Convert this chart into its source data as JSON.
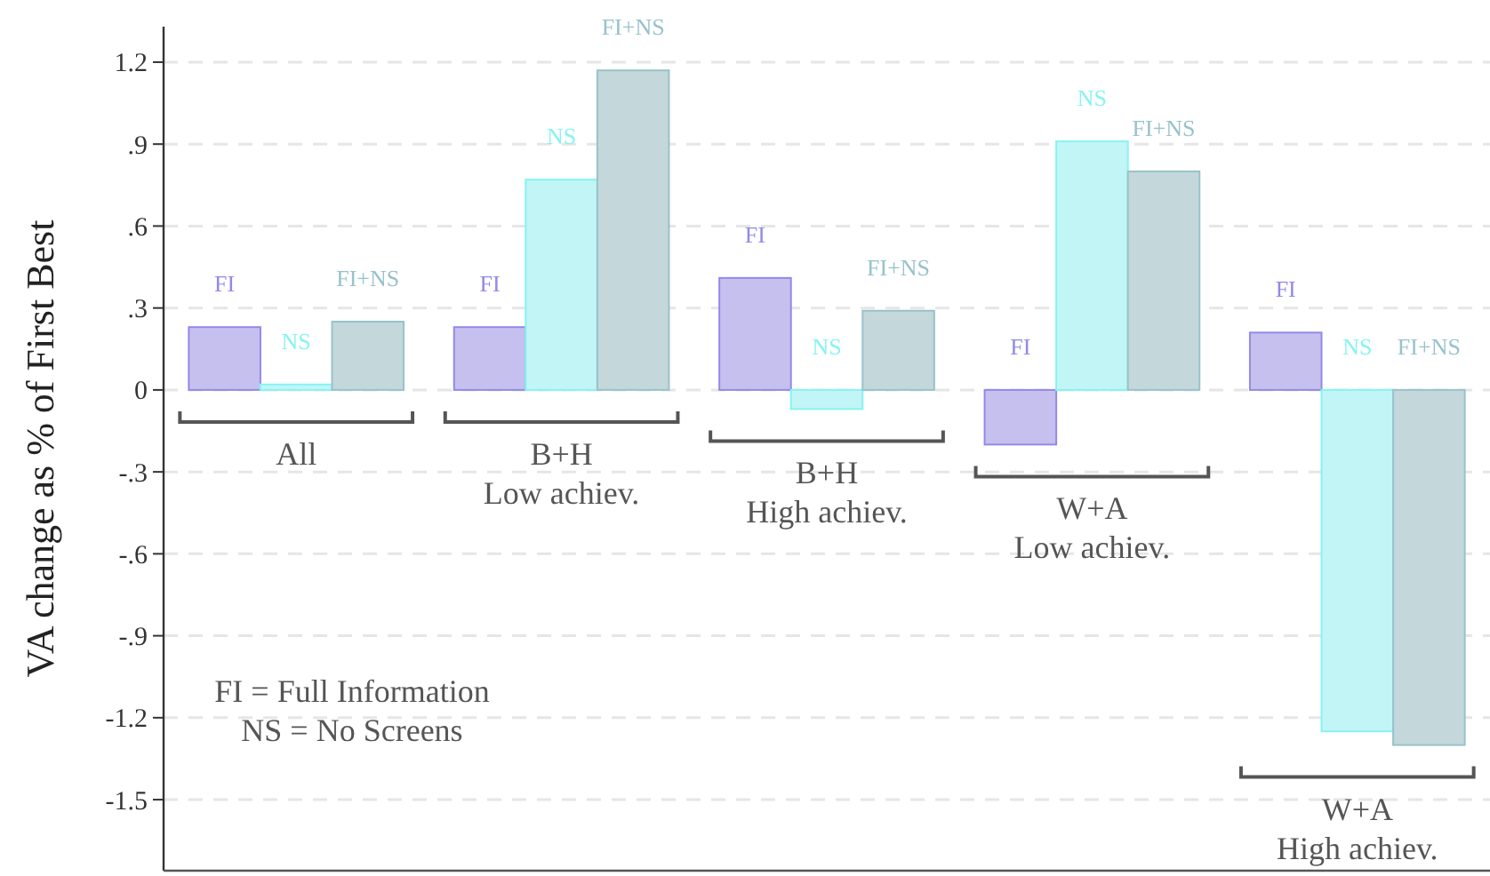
{
  "chart_data": {
    "type": "bar",
    "ylabel": "VA change as % of First Best",
    "categories": [
      "All",
      "B+H Low achiev.",
      "B+H High achiev.",
      "W+A Low achiev.",
      "W+A High achiev."
    ],
    "series": [
      {
        "name": "FI",
        "color": "#c5c0ee",
        "values": [
          0.23,
          0.23,
          0.41,
          -0.2,
          0.21
        ]
      },
      {
        "name": "NS",
        "color": "#c2f5f5",
        "values": [
          0.02,
          0.77,
          -0.07,
          0.91,
          -1.25
        ]
      },
      {
        "name": "FI+NS",
        "color": "#c4d7da",
        "values": [
          0.25,
          1.17,
          0.29,
          0.8,
          -1.3
        ]
      }
    ],
    "ylim": [
      -1.76,
      1.33
    ],
    "yticks": [
      {
        "value": 1.2,
        "label": "1.2"
      },
      {
        "value": 0.9,
        "label": ".9"
      },
      {
        "value": 0.6,
        "label": ".6"
      },
      {
        "value": 0.3,
        "label": ".3"
      },
      0,
      {
        "value": -0.3,
        "label": "-.3"
      },
      {
        "value": -0.6,
        "label": "-.6"
      },
      {
        "value": -0.9,
        "label": "-.9"
      },
      {
        "value": -1.2,
        "label": "-1.2"
      },
      {
        "value": -1.5,
        "label": "-1.5"
      }
    ],
    "grid": "y",
    "annotations": [
      "FI = Full Information",
      "NS = No Screens"
    ]
  }
}
